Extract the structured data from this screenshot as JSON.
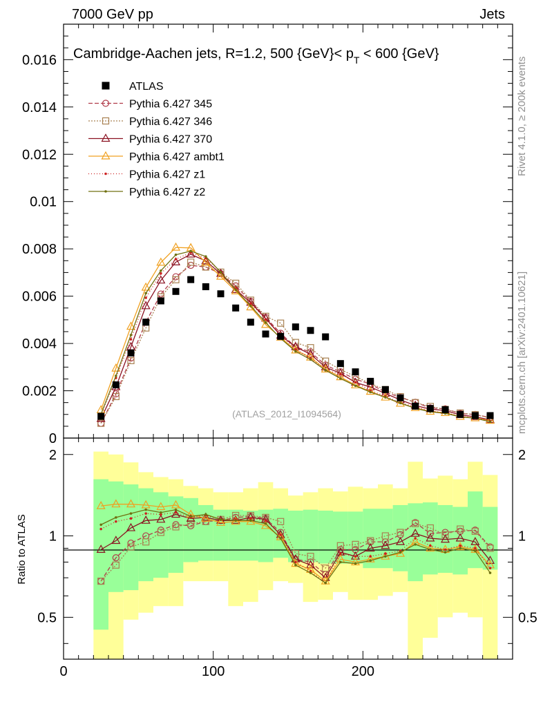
{
  "header": {
    "left": "7000 GeV pp",
    "right": "Jets"
  },
  "side_labels": {
    "rivet": "Rivet 4.1.0, ≥ 200k events",
    "mcplots": "mcplots.cern.ch [arXiv:2401.10621]"
  },
  "chart_data": {
    "type": "line",
    "title": "Cambridge-Aachen jets, R=1.2, 500 {GeV}< p",
    "title_sub": "T",
    "title_tail": " < 600 {GeV}",
    "analysis_tag": "(ATLAS_2012_I1094564)",
    "xlabel": "",
    "ylabel_main": "",
    "ylabel_ratio": "Ratio to ATLAS",
    "xlim": [
      0,
      300
    ],
    "ylim_main": [
      0,
      0.0175
    ],
    "ylim_ratio": [
      0.35,
      2.3
    ],
    "x_ticks": [
      "0",
      "100",
      "200"
    ],
    "y_ticks_main": [
      "0",
      "0.002",
      "0.004",
      "0.006",
      "0.008",
      "0.01",
      "0.012",
      "0.014",
      "0.016"
    ],
    "y_ticks_ratio": [
      "0.5",
      "1",
      "2"
    ],
    "x": [
      25,
      35,
      45,
      55,
      65,
      75,
      85,
      95,
      105,
      115,
      125,
      135,
      145,
      155,
      165,
      175,
      185,
      195,
      205,
      215,
      225,
      235,
      245,
      255,
      265,
      275,
      285
    ],
    "data": {
      "name": "ATLAS",
      "values": [
        0.00092,
        0.00225,
        0.0036,
        0.0049,
        0.0058,
        0.0062,
        0.0067,
        0.0064,
        0.0061,
        0.0055,
        0.0049,
        0.0044,
        0.0043,
        0.0047,
        0.00455,
        0.00428,
        0.00315,
        0.0028,
        0.0024,
        0.00205,
        0.0017,
        0.00135,
        0.00125,
        0.0012,
        0.001,
        0.00095,
        0.00095
      ],
      "band_inner_lo": [
        0.45,
        0.62,
        0.63,
        0.68,
        0.7,
        0.73,
        0.8,
        0.81,
        0.81,
        0.81,
        0.81,
        0.8,
        0.83,
        0.8,
        0.8,
        0.79,
        0.79,
        0.79,
        0.76,
        0.76,
        0.74,
        0.68,
        0.72,
        0.73,
        0.72,
        0.76,
        0.75
      ],
      "band_inner_hi": [
        1.62,
        1.59,
        1.55,
        1.5,
        1.45,
        1.4,
        1.38,
        1.3,
        1.25,
        1.25,
        1.24,
        1.25,
        1.26,
        1.24,
        1.25,
        1.24,
        1.23,
        1.23,
        1.26,
        1.26,
        1.3,
        1.32,
        1.33,
        1.3,
        1.28,
        1.46,
        1.28
      ],
      "band_outer_lo": [
        0.35,
        0.35,
        0.49,
        0.52,
        0.55,
        0.55,
        0.68,
        0.68,
        0.68,
        0.55,
        0.57,
        0.63,
        0.68,
        0.67,
        0.57,
        0.58,
        0.62,
        0.58,
        0.58,
        0.6,
        0.62,
        0.35,
        0.42,
        0.5,
        0.52,
        0.5,
        0.35
      ],
      "band_outer_hi": [
        2.05,
        2.0,
        1.87,
        1.72,
        1.65,
        1.62,
        1.53,
        1.5,
        1.45,
        1.45,
        1.5,
        1.58,
        1.5,
        1.41,
        1.45,
        1.5,
        1.46,
        1.52,
        1.5,
        1.55,
        1.5,
        1.88,
        1.63,
        1.67,
        1.62,
        1.88,
        1.68
      ]
    },
    "series": [
      {
        "name": "Pythia 6.427 345",
        "color": "#b03a48",
        "dash": "6,3",
        "marker": "circle",
        "ratio": [
          0.68,
          0.83,
          0.94,
          1.0,
          1.05,
          1.1,
          1.09,
          1.13,
          1.14,
          1.17,
          1.18,
          1.16,
          1.03,
          0.82,
          0.8,
          0.72,
          0.89,
          0.89,
          0.95,
          0.95,
          1.01,
          1.12,
          1.02,
          1.03,
          1.04,
          1.05,
          0.91
        ]
      },
      {
        "name": "Pythia 6.427 346",
        "color": "#a88050",
        "dash": "2,2",
        "marker": "square",
        "ratio": [
          0.68,
          0.78,
          0.91,
          0.95,
          1.03,
          1.08,
          1.11,
          1.13,
          1.15,
          1.19,
          1.19,
          1.17,
          1.13,
          0.86,
          0.84,
          0.76,
          0.92,
          0.93,
          0.96,
          1.0,
          1.03,
          1.11,
          1.07,
          1.01,
          1.06,
          1.04,
          0.9
        ]
      },
      {
        "name": "Pythia 6.427 370",
        "color": "#8a1020",
        "dash": "",
        "marker": "triangle",
        "ratio": [
          0.89,
          0.96,
          1.07,
          1.14,
          1.15,
          1.2,
          1.16,
          1.17,
          1.14,
          1.14,
          1.17,
          1.15,
          1.01,
          0.82,
          0.78,
          0.7,
          0.87,
          0.84,
          0.9,
          0.92,
          0.95,
          1.02,
          0.98,
          0.97,
          0.98,
          0.95,
          0.81
        ]
      },
      {
        "name": "Pythia 6.427 ambt1",
        "color": "#f0a020",
        "dash": "",
        "marker": "triangle",
        "ratio": [
          1.29,
          1.31,
          1.31,
          1.3,
          1.28,
          1.3,
          1.2,
          1.16,
          1.12,
          1.13,
          1.13,
          1.09,
          0.99,
          0.79,
          0.75,
          0.68,
          0.82,
          0.8,
          0.82,
          0.84,
          0.86,
          0.95,
          0.9,
          0.89,
          0.91,
          0.89,
          0.78
        ]
      },
      {
        "name": "Pythia 6.427 z1",
        "color": "#cc2020",
        "dash": "1,3",
        "marker": "dot",
        "ratio": [
          1.06,
          1.13,
          1.16,
          1.21,
          1.2,
          1.22,
          1.17,
          1.19,
          1.15,
          1.15,
          1.16,
          1.14,
          1.01,
          0.8,
          0.74,
          0.67,
          0.86,
          0.84,
          0.84,
          0.86,
          0.88,
          0.98,
          0.92,
          0.89,
          0.92,
          0.9,
          0.76
        ]
      },
      {
        "name": "Pythia 6.427 z2",
        "color": "#707010",
        "dash": "",
        "marker": "dot",
        "ratio": [
          1.1,
          1.17,
          1.21,
          1.25,
          1.22,
          1.25,
          1.18,
          1.2,
          1.15,
          1.14,
          1.14,
          1.11,
          0.98,
          0.78,
          0.73,
          0.67,
          0.8,
          0.79,
          0.81,
          0.84,
          0.87,
          0.93,
          0.89,
          0.87,
          0.9,
          0.88,
          0.73
        ]
      }
    ],
    "legend_position": "top-left",
    "grid": false
  }
}
